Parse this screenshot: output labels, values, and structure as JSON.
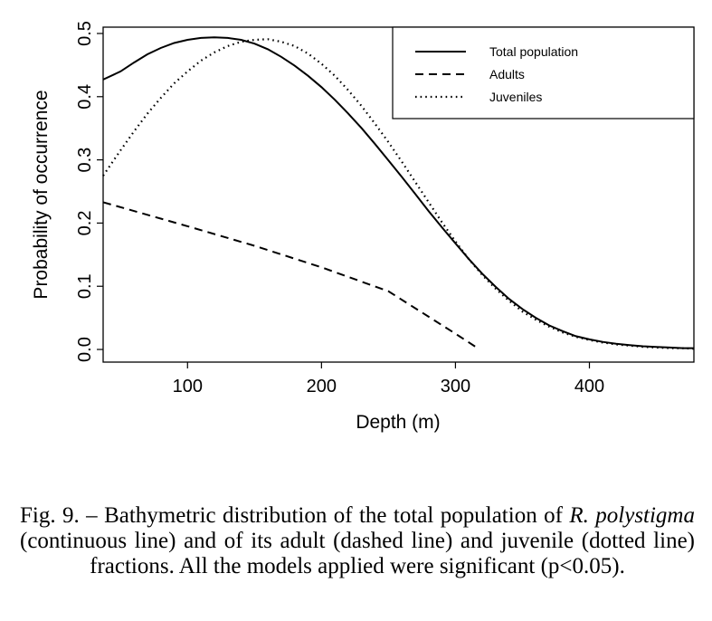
{
  "chart_data": {
    "type": "line",
    "xlabel": "Depth (m)",
    "ylabel": "Probability of occurrence",
    "xlim": [
      37,
      478
    ],
    "ylim": [
      -0.02,
      0.51
    ],
    "xticks": [
      100,
      200,
      300,
      400
    ],
    "yticks": [
      0.0,
      0.1,
      0.2,
      0.3,
      0.4,
      0.5
    ],
    "ytick_labels": [
      "0.0",
      "0.1",
      "0.2",
      "0.3",
      "0.4",
      "0.5"
    ],
    "legend_position": "top-right",
    "grid": false,
    "series": [
      {
        "name": "Total population",
        "style": "solid",
        "x": [
          37,
          50,
          60,
          70,
          80,
          90,
          100,
          110,
          120,
          130,
          140,
          150,
          160,
          170,
          180,
          190,
          200,
          210,
          220,
          230,
          240,
          250,
          260,
          270,
          280,
          290,
          300,
          310,
          320,
          330,
          340,
          350,
          360,
          370,
          380,
          390,
          400,
          410,
          420,
          430,
          440,
          450,
          460,
          470,
          478
        ],
        "y": [
          0.427,
          0.44,
          0.454,
          0.467,
          0.477,
          0.485,
          0.49,
          0.493,
          0.494,
          0.493,
          0.49,
          0.484,
          0.475,
          0.463,
          0.449,
          0.433,
          0.415,
          0.395,
          0.373,
          0.35,
          0.325,
          0.299,
          0.273,
          0.246,
          0.219,
          0.193,
          0.168,
          0.143,
          0.12,
          0.099,
          0.08,
          0.064,
          0.05,
          0.038,
          0.029,
          0.021,
          0.016,
          0.012,
          0.009,
          0.007,
          0.005,
          0.004,
          0.003,
          0.002,
          0.002
        ]
      },
      {
        "name": "Adults",
        "style": "dashed",
        "x": [
          37,
          100,
          150,
          200,
          250,
          300,
          318
        ],
        "y": [
          0.233,
          0.195,
          0.164,
          0.13,
          0.092,
          0.025,
          0.0
        ]
      },
      {
        "name": "Juveniles",
        "style": "dotted",
        "x": [
          37,
          50,
          60,
          70,
          80,
          90,
          100,
          110,
          120,
          130,
          140,
          150,
          160,
          170,
          180,
          190,
          200,
          210,
          220,
          230,
          240,
          250,
          260,
          270,
          280,
          290,
          300,
          310,
          320,
          330,
          340,
          350,
          360,
          370,
          380,
          390,
          400,
          410,
          420,
          430,
          440,
          450,
          460,
          470,
          478
        ],
        "y": [
          0.275,
          0.315,
          0.345,
          0.373,
          0.398,
          0.421,
          0.44,
          0.457,
          0.47,
          0.48,
          0.487,
          0.49,
          0.491,
          0.487,
          0.48,
          0.468,
          0.452,
          0.433,
          0.41,
          0.385,
          0.357,
          0.328,
          0.297,
          0.265,
          0.233,
          0.201,
          0.171,
          0.143,
          0.118,
          0.096,
          0.077,
          0.06,
          0.047,
          0.036,
          0.027,
          0.02,
          0.015,
          0.011,
          0.008,
          0.006,
          0.004,
          0.003,
          0.002,
          0.002,
          0.001
        ]
      }
    ]
  },
  "caption": {
    "prefix": "Fig. 9. – Bathymetric distribution of the total population of ",
    "species": "R. polystigma",
    "suffix": " (continuous line) and of its adult (dashed line) and juvenile (dotted line) fractions. All the models applied were significant (p<0.05)."
  }
}
